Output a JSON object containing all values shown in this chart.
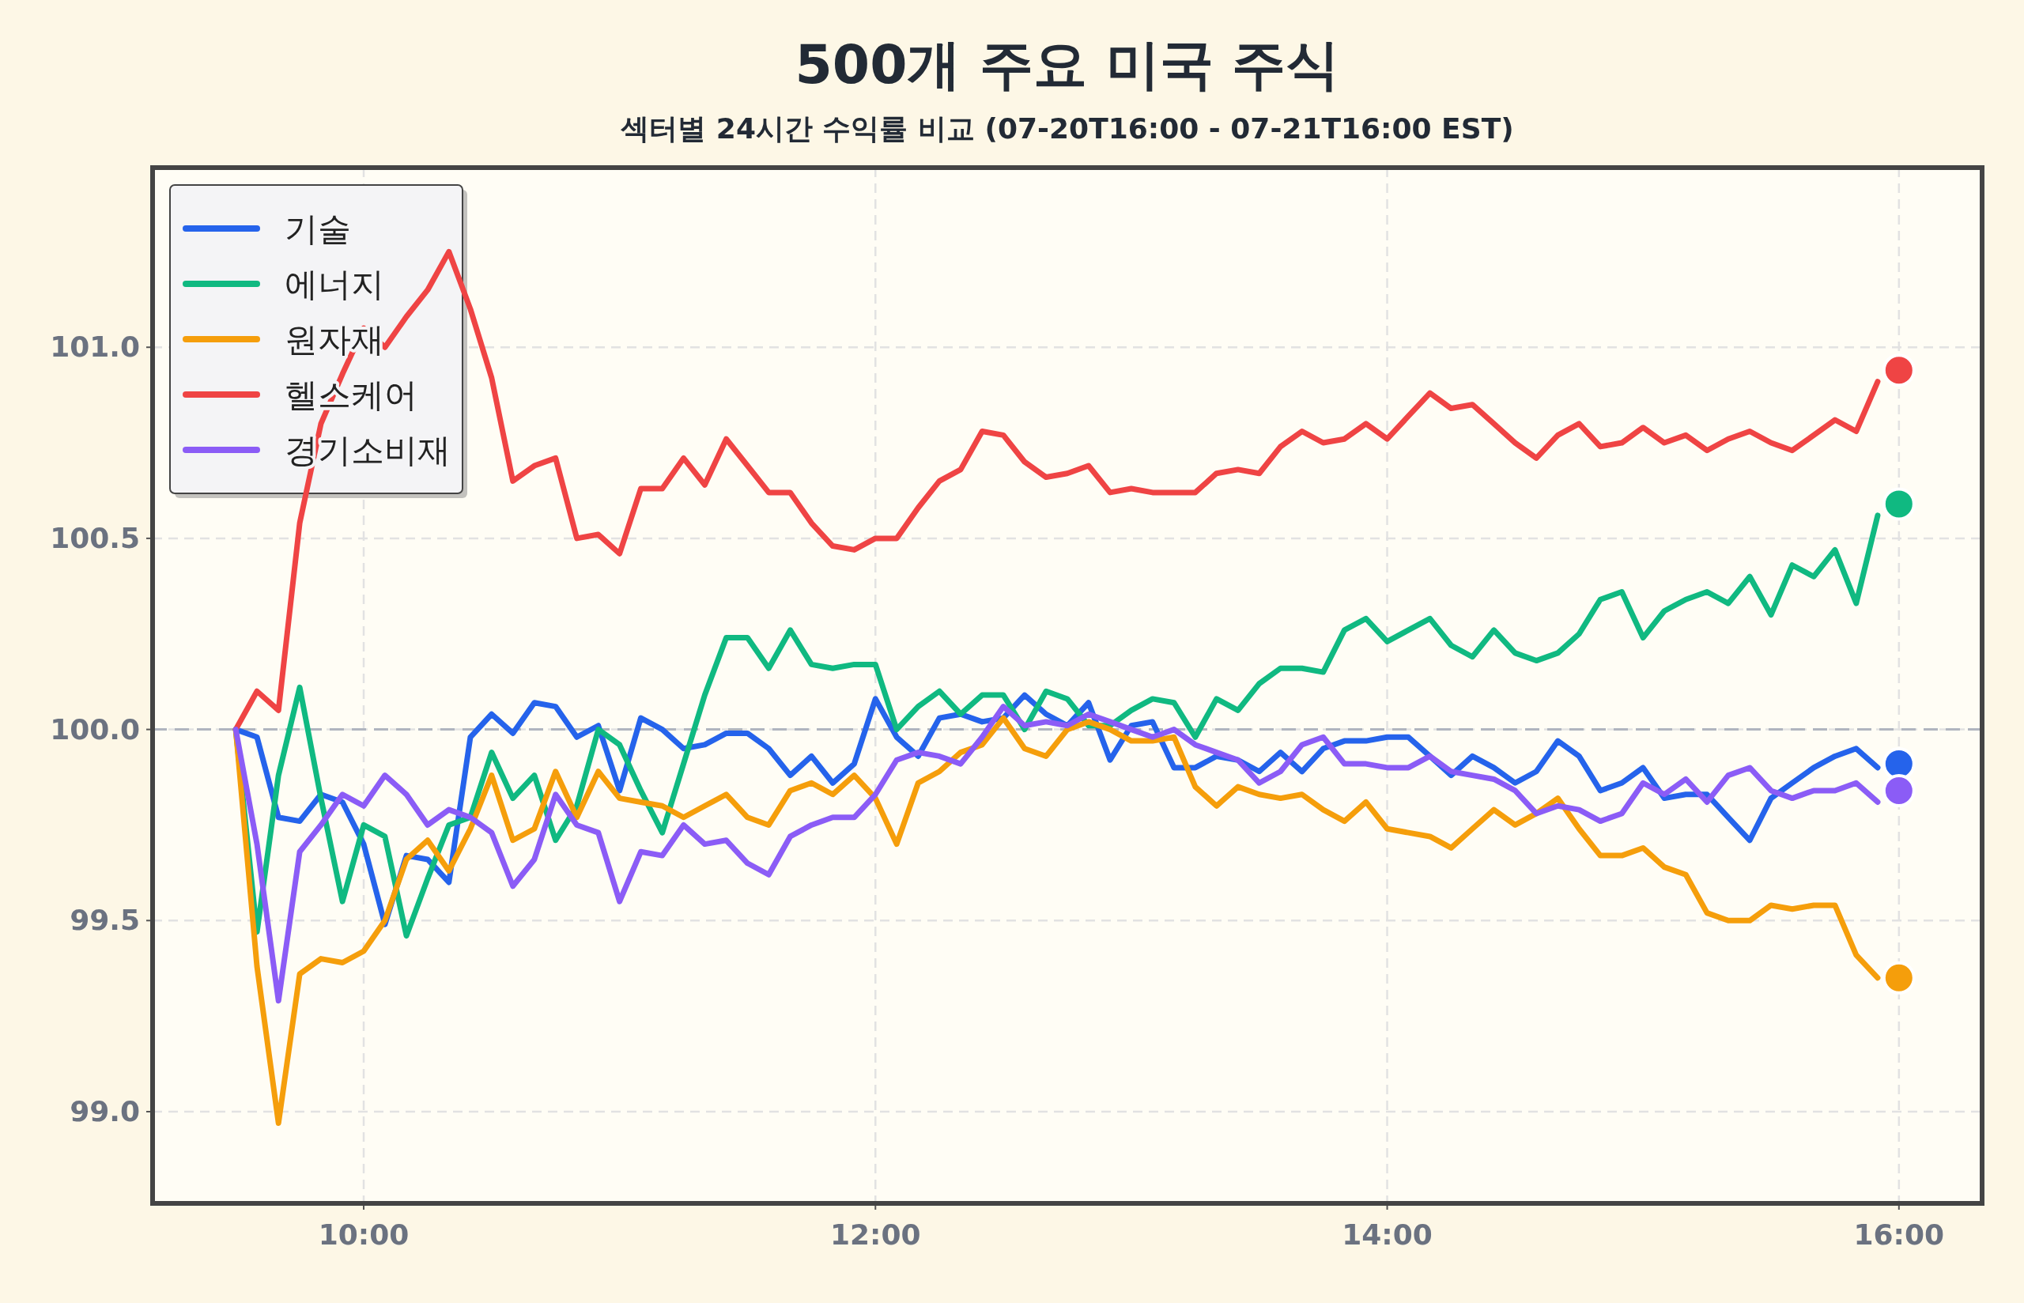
{
  "chart_data": {
    "type": "line",
    "title": "500개 주요 미국 주식",
    "subtitle": "섹터별 24시간 수익률 비교 (07-20T16:00 - 07-21T16:00 EST)",
    "x": [
      9.5,
      9.583,
      9.667,
      9.75,
      9.833,
      9.917,
      10,
      10.083,
      10.167,
      10.25,
      10.333,
      10.417,
      10.5,
      10.583,
      10.667,
      10.75,
      10.833,
      10.917,
      11,
      11.083,
      11.167,
      11.25,
      11.333,
      11.417,
      11.5,
      11.583,
      11.667,
      11.75,
      11.833,
      11.917,
      12,
      12.083,
      12.167,
      12.25,
      12.333,
      12.417,
      12.5,
      12.583,
      12.667,
      12.75,
      12.833,
      12.917,
      13,
      13.083,
      13.167,
      13.25,
      13.333,
      13.417,
      13.5,
      13.583,
      13.667,
      13.75,
      13.833,
      13.917,
      14,
      14.083,
      14.167,
      14.25,
      14.333,
      14.417,
      14.5,
      14.583,
      14.667,
      14.75,
      14.833,
      14.917,
      15,
      15.083,
      15.167,
      15.25,
      15.333,
      15.417,
      15.5,
      15.583,
      15.667,
      15.75,
      15.833,
      15.917,
      16
    ],
    "series": [
      {
        "name": "기술",
        "color": "#2563eb",
        "values": [
          100.0,
          99.98,
          99.77,
          99.76,
          99.83,
          99.81,
          99.7,
          99.49,
          99.67,
          99.66,
          99.6,
          99.98,
          100.04,
          99.99,
          100.07,
          100.06,
          99.98,
          100.01,
          99.84,
          100.03,
          100.0,
          99.95,
          99.96,
          99.99,
          99.99,
          99.95,
          99.88,
          99.93,
          99.86,
          99.91,
          100.08,
          99.98,
          99.93,
          100.03,
          100.04,
          100.02,
          100.03,
          100.09,
          100.04,
          100.01,
          100.07,
          99.92,
          100.01,
          100.02,
          99.9,
          99.9,
          99.93,
          99.92,
          99.89,
          99.94,
          99.89,
          99.95,
          99.97,
          99.97,
          99.98,
          99.98,
          99.93,
          99.88,
          99.93,
          99.9,
          99.86,
          99.89,
          99.97,
          99.93,
          99.84,
          99.86,
          99.9,
          99.82,
          99.83,
          99.83,
          99.77,
          99.71,
          99.82,
          99.86,
          99.9,
          99.93,
          99.95,
          99.9,
          null
        ]
      },
      {
        "name": "에너지",
        "color": "#10b981",
        "values": [
          100.0,
          99.47,
          99.88,
          100.11,
          99.82,
          99.55,
          99.75,
          99.72,
          99.46,
          99.61,
          99.75,
          99.77,
          99.94,
          99.82,
          99.88,
          99.71,
          99.8,
          100.0,
          99.96,
          99.84,
          99.73,
          99.91,
          100.09,
          100.24,
          100.24,
          100.16,
          100.26,
          100.17,
          100.16,
          100.17,
          100.17,
          100.0,
          100.06,
          100.1,
          100.04,
          100.09,
          100.09,
          100.0,
          100.1,
          100.08,
          100.01,
          100.01,
          100.05,
          100.08,
          100.07,
          99.98,
          100.08,
          100.05,
          100.12,
          100.16,
          100.16,
          100.15,
          100.26,
          100.29,
          100.23,
          100.26,
          100.29,
          100.22,
          100.19,
          100.26,
          100.2,
          100.18,
          100.2,
          100.25,
          100.34,
          100.36,
          100.24,
          100.31,
          100.34,
          100.36,
          100.33,
          100.4,
          100.3,
          100.43,
          100.4,
          100.47,
          100.33,
          100.56,
          null
        ]
      },
      {
        "name": "원자재",
        "color": "#f59e0b",
        "values": [
          100.0,
          99.38,
          98.97,
          99.36,
          99.4,
          99.39,
          99.42,
          99.5,
          99.66,
          99.71,
          99.63,
          99.74,
          99.88,
          99.71,
          99.74,
          99.89,
          99.77,
          99.89,
          99.82,
          99.81,
          99.8,
          99.77,
          99.8,
          99.83,
          99.77,
          99.75,
          99.84,
          99.86,
          99.83,
          99.88,
          99.82,
          99.7,
          99.86,
          99.89,
          99.94,
          99.96,
          100.03,
          99.95,
          99.93,
          100.0,
          100.02,
          100.0,
          99.97,
          99.97,
          99.98,
          99.85,
          99.8,
          99.85,
          99.83,
          99.82,
          99.83,
          99.79,
          99.76,
          99.81,
          99.74,
          99.73,
          99.72,
          99.69,
          99.74,
          99.79,
          99.75,
          99.78,
          99.82,
          99.74,
          99.67,
          99.67,
          99.69,
          99.64,
          99.62,
          99.52,
          99.5,
          99.5,
          99.54,
          99.53,
          99.54,
          99.54,
          99.41,
          99.35,
          null
        ]
      },
      {
        "name": "헬스케어",
        "color": "#ef4444",
        "values": [
          100.0,
          100.1,
          100.05,
          100.54,
          100.8,
          100.93,
          101.05,
          101.0,
          101.08,
          101.15,
          101.25,
          101.1,
          100.92,
          100.65,
          100.69,
          100.71,
          100.5,
          100.51,
          100.46,
          100.63,
          100.63,
          100.71,
          100.64,
          100.76,
          100.69,
          100.62,
          100.62,
          100.54,
          100.48,
          100.47,
          100.5,
          100.5,
          100.58,
          100.65,
          100.68,
          100.78,
          100.77,
          100.7,
          100.66,
          100.67,
          100.69,
          100.62,
          100.63,
          100.62,
          100.62,
          100.62,
          100.67,
          100.68,
          100.67,
          100.74,
          100.78,
          100.75,
          100.76,
          100.8,
          100.76,
          100.82,
          100.88,
          100.84,
          100.85,
          100.8,
          100.75,
          100.71,
          100.77,
          100.8,
          100.74,
          100.75,
          100.79,
          100.75,
          100.77,
          100.73,
          100.76,
          100.78,
          100.75,
          100.73,
          100.77,
          100.81,
          100.78,
          100.91,
          null
        ]
      },
      {
        "name": "경기소비재",
        "color": "#8b5cf6",
        "values": [
          100.0,
          99.7,
          99.29,
          99.68,
          99.75,
          99.83,
          99.8,
          99.88,
          99.83,
          99.75,
          99.79,
          99.77,
          99.73,
          99.59,
          99.66,
          99.83,
          99.75,
          99.73,
          99.55,
          99.68,
          99.67,
          99.75,
          99.7,
          99.71,
          99.65,
          99.62,
          99.72,
          99.75,
          99.77,
          99.77,
          99.83,
          99.92,
          99.94,
          99.93,
          99.91,
          99.98,
          100.06,
          100.01,
          100.02,
          100.01,
          100.04,
          100.02,
          100.0,
          99.98,
          100.0,
          99.96,
          99.94,
          99.92,
          99.86,
          99.89,
          99.96,
          99.98,
          99.91,
          99.91,
          99.9,
          99.9,
          99.93,
          99.89,
          99.88,
          99.87,
          99.84,
          99.78,
          99.8,
          99.79,
          99.76,
          99.78,
          99.86,
          99.83,
          99.87,
          99.81,
          99.88,
          99.9,
          99.84,
          99.82,
          99.84,
          99.84,
          99.86,
          99.81,
          null
        ]
      },
      {
        "type": "scatter",
        "color": "#2563eb",
        "values": [
          null,
          null,
          null,
          null,
          null,
          null,
          null,
          null,
          null,
          null,
          null,
          null,
          null,
          null,
          null,
          null,
          null,
          null,
          null,
          null,
          null,
          null,
          null,
          null,
          null,
          null,
          null,
          null,
          null,
          null,
          null,
          null,
          null,
          null,
          null,
          null,
          null,
          null,
          null,
          null,
          null,
          null,
          null,
          null,
          null,
          null,
          null,
          null,
          null,
          null,
          null,
          null,
          null,
          null,
          null,
          null,
          null,
          null,
          null,
          null,
          null,
          null,
          null,
          null,
          null,
          null,
          null,
          null,
          null,
          null,
          null,
          null,
          null,
          null,
          null,
          null,
          null,
          null,
          99.91
        ]
      },
      {
        "type": "scatter",
        "color": "#10b981",
        "values": [
          null,
          null,
          null,
          null,
          null,
          null,
          null,
          null,
          null,
          null,
          null,
          null,
          null,
          null,
          null,
          null,
          null,
          null,
          null,
          null,
          null,
          null,
          null,
          null,
          null,
          null,
          null,
          null,
          null,
          null,
          null,
          null,
          null,
          null,
          null,
          null,
          null,
          null,
          null,
          null,
          null,
          null,
          null,
          null,
          null,
          null,
          null,
          null,
          null,
          null,
          null,
          null,
          null,
          null,
          null,
          null,
          null,
          null,
          null,
          null,
          null,
          null,
          null,
          null,
          null,
          null,
          null,
          null,
          null,
          null,
          null,
          null,
          null,
          null,
          null,
          null,
          null,
          null,
          100.59
        ]
      },
      {
        "type": "scatter",
        "color": "#f59e0b",
        "values": [
          null,
          null,
          null,
          null,
          null,
          null,
          null,
          null,
          null,
          null,
          null,
          null,
          null,
          null,
          null,
          null,
          null,
          null,
          null,
          null,
          null,
          null,
          null,
          null,
          null,
          null,
          null,
          null,
          null,
          null,
          null,
          null,
          null,
          null,
          null,
          null,
          null,
          null,
          null,
          null,
          null,
          null,
          null,
          null,
          null,
          null,
          null,
          null,
          null,
          null,
          null,
          null,
          null,
          null,
          null,
          null,
          null,
          null,
          null,
          null,
          null,
          null,
          null,
          null,
          null,
          null,
          null,
          null,
          null,
          null,
          null,
          null,
          null,
          null,
          null,
          null,
          null,
          null,
          99.35
        ]
      },
      {
        "type": "scatter",
        "color": "#ef4444",
        "values": [
          null,
          null,
          null,
          null,
          null,
          null,
          null,
          null,
          null,
          null,
          null,
          null,
          null,
          null,
          null,
          null,
          null,
          null,
          null,
          null,
          null,
          null,
          null,
          null,
          null,
          null,
          null,
          null,
          null,
          null,
          null,
          null,
          null,
          null,
          null,
          null,
          null,
          null,
          null,
          null,
          null,
          null,
          null,
          null,
          null,
          null,
          null,
          null,
          null,
          null,
          null,
          null,
          null,
          null,
          null,
          null,
          null,
          null,
          null,
          null,
          null,
          null,
          null,
          null,
          null,
          null,
          null,
          null,
          null,
          null,
          null,
          null,
          null,
          null,
          null,
          null,
          null,
          null,
          100.94
        ]
      },
      {
        "type": "scatter",
        "color": "#8b5cf6",
        "values": [
          null,
          null,
          null,
          null,
          null,
          null,
          null,
          null,
          null,
          null,
          null,
          null,
          null,
          null,
          null,
          null,
          null,
          null,
          null,
          null,
          null,
          null,
          null,
          null,
          null,
          null,
          null,
          null,
          null,
          null,
          null,
          null,
          null,
          null,
          null,
          null,
          null,
          null,
          null,
          null,
          null,
          null,
          null,
          null,
          null,
          null,
          null,
          null,
          null,
          null,
          null,
          null,
          null,
          null,
          null,
          null,
          null,
          null,
          null,
          null,
          null,
          null,
          null,
          null,
          null,
          null,
          null,
          null,
          null,
          null,
          null,
          null,
          null,
          null,
          null,
          null,
          null,
          null,
          99.84
        ]
      }
    ],
    "xlim": [
      9.175,
      16.325
    ],
    "ylim": [
      98.76,
      101.47
    ],
    "xticks": [
      {
        "value": 10,
        "label": "10:00"
      },
      {
        "value": 12,
        "label": "12:00"
      },
      {
        "value": 14,
        "label": "14:00"
      },
      {
        "value": 16,
        "label": "16:00"
      }
    ],
    "yticks": [
      {
        "value": 99,
        "label": "99.0"
      },
      {
        "value": 99.5,
        "label": "99.5"
      },
      {
        "value": 100,
        "label": "100.0"
      },
      {
        "value": 100.5,
        "label": "100.5"
      },
      {
        "value": 101,
        "label": "101.0"
      }
    ],
    "ref_lines": [
      {
        "axis": "y",
        "value": 100,
        "color": "#b0b5bf",
        "line_style": "dashed"
      }
    ],
    "grid": true,
    "legend": "top left"
  }
}
